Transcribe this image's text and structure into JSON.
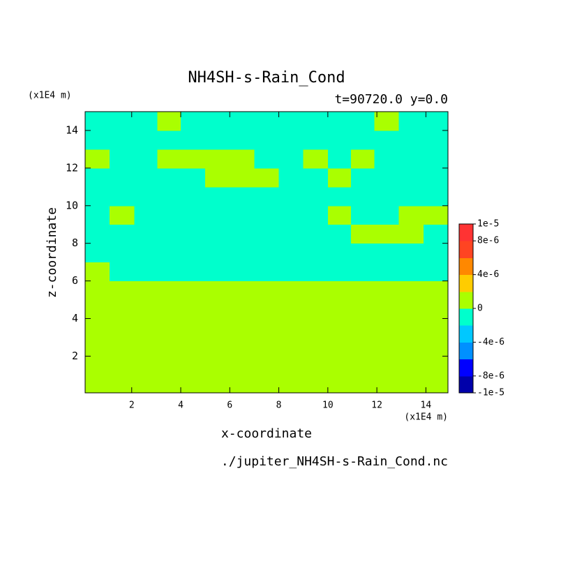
{
  "chart_data": {
    "type": "heatmap",
    "title": "NH4SH-s-Rain_Cond",
    "subtitle": "t=90720.0 y=0.0",
    "x_unit": "(x1E4 m)",
    "y_unit": "(x1E4 m)",
    "x_label": "x-coordinate",
    "y_label": "z-coordinate",
    "file": "./jupiter_NH4SH-s-Rain_Cond.nc",
    "xlim": [
      0.1,
      14.9
    ],
    "ylim": [
      0.05,
      15.0
    ],
    "xticks": [
      2,
      4,
      6,
      8,
      10,
      12,
      14
    ],
    "yticks": [
      2,
      4,
      6,
      8,
      10,
      12,
      14
    ],
    "x": [
      0.6,
      1.6,
      2.6,
      3.5,
      4.5,
      5.5,
      6.5,
      7.5,
      8.5,
      9.5,
      10.5,
      11.4,
      12.4,
      13.4,
      14.4
    ],
    "y": [
      0.5,
      1.5,
      2.5,
      3.5,
      4.5,
      5.5,
      6.5,
      7.5,
      8.5,
      9.5,
      10.5,
      11.5,
      12.5,
      13.5,
      14.5
    ],
    "z": [
      [
        1e-06,
        1e-06,
        1e-06,
        1e-06,
        1e-06,
        1e-06,
        1e-06,
        1e-06,
        1e-06,
        1e-06,
        1e-06,
        1e-06,
        1e-06,
        1e-06,
        1e-06
      ],
      [
        1e-06,
        1e-06,
        1e-06,
        1e-06,
        1e-06,
        1e-06,
        1e-06,
        1e-06,
        1e-06,
        1e-06,
        1e-06,
        1e-06,
        1e-06,
        1e-06,
        1e-06
      ],
      [
        1e-06,
        1e-06,
        1e-06,
        1e-06,
        1e-06,
        1e-06,
        1e-06,
        1e-06,
        1e-06,
        1e-06,
        1e-06,
        1e-06,
        1e-06,
        1e-06,
        1e-06
      ],
      [
        1e-06,
        1e-06,
        1e-06,
        1e-06,
        1e-06,
        1e-06,
        1e-06,
        1e-06,
        1e-06,
        1e-06,
        1e-06,
        1e-06,
        1e-06,
        1e-06,
        1e-06
      ],
      [
        1e-06,
        1e-06,
        1e-06,
        1e-06,
        1e-06,
        1e-06,
        1e-06,
        1e-06,
        1e-06,
        1e-06,
        1e-06,
        1e-06,
        1e-06,
        1e-06,
        1e-06
      ],
      [
        1e-06,
        1e-06,
        1e-06,
        1e-06,
        1e-06,
        1e-06,
        1e-06,
        1e-06,
        1e-06,
        1e-06,
        1e-06,
        1e-06,
        1e-06,
        1e-06,
        1e-06
      ],
      [
        1e-06,
        -1e-06,
        -1e-06,
        -1e-06,
        -1e-06,
        -1e-06,
        -1e-06,
        -1e-06,
        -1e-06,
        -1e-06,
        -1e-06,
        -1e-06,
        -1e-06,
        -1e-06,
        -1e-06
      ],
      [
        -1e-06,
        -1e-06,
        -1e-06,
        -1e-06,
        -1e-06,
        -1e-06,
        -1e-06,
        -1e-06,
        -1e-06,
        -1e-06,
        -1e-06,
        -1e-06,
        -1e-06,
        -1e-06,
        -1e-06
      ],
      [
        -1e-06,
        -1e-06,
        -1e-06,
        -1e-06,
        -1e-06,
        -1e-06,
        -1e-06,
        -1e-06,
        -1e-06,
        -1e-06,
        -1e-06,
        1e-06,
        1e-06,
        1e-06,
        -1e-06
      ],
      [
        -1e-06,
        1e-06,
        -1e-06,
        -1e-06,
        -1e-06,
        -1e-06,
        -1e-06,
        -1e-06,
        -1e-06,
        -1e-06,
        1e-06,
        -1e-06,
        -1e-06,
        1e-06,
        1e-06
      ],
      [
        -1e-06,
        -1e-06,
        -1e-06,
        -1e-06,
        -1e-06,
        -1e-06,
        -1e-06,
        -1e-06,
        -1e-06,
        -1e-06,
        -1e-06,
        -1e-06,
        -1e-06,
        -1e-06,
        -1e-06
      ],
      [
        -1e-06,
        -1e-06,
        -1e-06,
        -1e-06,
        -1e-06,
        1e-06,
        1e-06,
        1e-06,
        -1e-06,
        -1e-06,
        1e-06,
        -1e-06,
        -1e-06,
        -1e-06,
        -1e-06
      ],
      [
        1e-06,
        -1e-06,
        -1e-06,
        1e-06,
        1e-06,
        1e-06,
        1e-06,
        -1e-06,
        -1e-06,
        1e-06,
        -1e-06,
        1e-06,
        -1e-06,
        -1e-06,
        -1e-06
      ],
      [
        -1e-06,
        -1e-06,
        -1e-06,
        -1e-06,
        -1e-06,
        -1e-06,
        -1e-06,
        -1e-06,
        -1e-06,
        -1e-06,
        -1e-06,
        -1e-06,
        -1e-06,
        -1e-06,
        -1e-06
      ],
      [
        -1e-06,
        -1e-06,
        -1e-06,
        1e-06,
        -1e-06,
        -1e-06,
        -1e-06,
        -1e-06,
        -1e-06,
        -1e-06,
        -1e-06,
        -1e-06,
        1e-06,
        -1e-06,
        -1e-06
      ]
    ],
    "levels": [
      -1e-05,
      -8e-06,
      -6e-06,
      -4e-06,
      -2e-06,
      0,
      2e-06,
      4e-06,
      6e-06,
      8e-06,
      1e-05
    ],
    "colors": [
      "#0000aa",
      "#0000ff",
      "#0090ff",
      "#00c8ff",
      "#00ffcc",
      "#aaff00",
      "#ffcc00",
      "#ff8800",
      "#ff4422",
      "#ff3333"
    ],
    "colorbar_ticks": [
      {
        "value": 1e-05,
        "label": "1e-5"
      },
      {
        "value": 8e-06,
        "label": "8e-6"
      },
      {
        "value": 4e-06,
        "label": "4e-6"
      },
      0,
      {
        "value": -4e-06,
        "label": "-4e-6"
      },
      {
        "value": -8e-06,
        "label": "-8e-6"
      },
      {
        "value": -1e-05,
        "label": "-1e-5"
      }
    ]
  }
}
